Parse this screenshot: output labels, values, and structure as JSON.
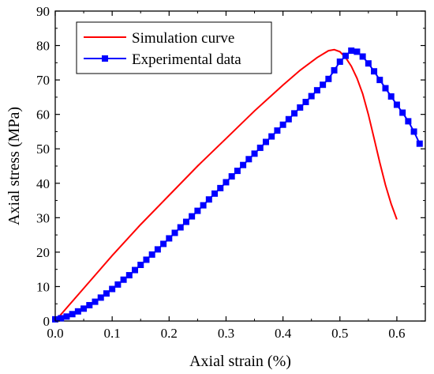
{
  "chart_data": {
    "type": "line",
    "xlabel": "Axial strain (%)",
    "ylabel": "Axial stress (MPa)",
    "xlim": [
      0.0,
      0.65
    ],
    "ylim": [
      0,
      90
    ],
    "x_ticks": [
      "0.0",
      "0.1",
      "0.2",
      "0.3",
      "0.4",
      "0.5",
      "0.6"
    ],
    "y_ticks": [
      "0",
      "10",
      "20",
      "30",
      "40",
      "50",
      "60",
      "70",
      "80",
      "90"
    ],
    "legend_position": "top-left",
    "grid": false,
    "series": [
      {
        "name": "Simulation curve",
        "color": "#ff0000",
        "marker": "none",
        "x": [
          0.0,
          0.05,
          0.1,
          0.15,
          0.2,
          0.25,
          0.3,
          0.35,
          0.4,
          0.43,
          0.46,
          0.48,
          0.49,
          0.5,
          0.51,
          0.52,
          0.53,
          0.54,
          0.55,
          0.56,
          0.57,
          0.58,
          0.59,
          0.6
        ],
        "y": [
          0.0,
          9.5,
          19.0,
          28.0,
          36.5,
          45.0,
          53.0,
          61.0,
          68.5,
          72.8,
          76.5,
          78.5,
          78.8,
          78.2,
          76.5,
          74.0,
          70.5,
          66.0,
          60.0,
          53.0,
          46.0,
          39.5,
          34.0,
          29.5
        ]
      },
      {
        "name": "Experimental data",
        "color": "#0000ff",
        "marker": "square",
        "x": [
          0.0,
          0.01,
          0.02,
          0.03,
          0.04,
          0.05,
          0.06,
          0.07,
          0.08,
          0.09,
          0.1,
          0.11,
          0.12,
          0.13,
          0.14,
          0.15,
          0.16,
          0.17,
          0.18,
          0.19,
          0.2,
          0.21,
          0.22,
          0.23,
          0.24,
          0.25,
          0.26,
          0.27,
          0.28,
          0.29,
          0.3,
          0.31,
          0.32,
          0.33,
          0.34,
          0.35,
          0.36,
          0.37,
          0.38,
          0.39,
          0.4,
          0.41,
          0.42,
          0.43,
          0.44,
          0.45,
          0.46,
          0.47,
          0.48,
          0.49,
          0.5,
          0.51,
          0.52,
          0.53,
          0.54,
          0.55,
          0.56,
          0.57,
          0.58,
          0.59,
          0.6,
          0.61,
          0.62,
          0.63,
          0.64
        ],
        "y": [
          0.5,
          0.8,
          1.3,
          2.0,
          2.8,
          3.6,
          4.6,
          5.6,
          6.8,
          8.0,
          9.3,
          10.6,
          12.0,
          13.3,
          14.8,
          16.3,
          17.8,
          19.3,
          20.8,
          22.4,
          24.0,
          25.6,
          27.2,
          28.8,
          30.4,
          32.0,
          33.6,
          35.3,
          37.0,
          38.6,
          40.3,
          42.0,
          43.6,
          45.3,
          47.0,
          48.6,
          50.3,
          52.0,
          53.6,
          55.3,
          57.0,
          58.6,
          60.3,
          62.0,
          63.6,
          65.3,
          67.0,
          68.6,
          70.3,
          72.8,
          75.3,
          77.0,
          78.5,
          78.2,
          76.8,
          74.8,
          72.5,
          70.0,
          67.6,
          65.2,
          62.8,
          60.5,
          58.0,
          55.0,
          51.5
        ]
      }
    ]
  }
}
